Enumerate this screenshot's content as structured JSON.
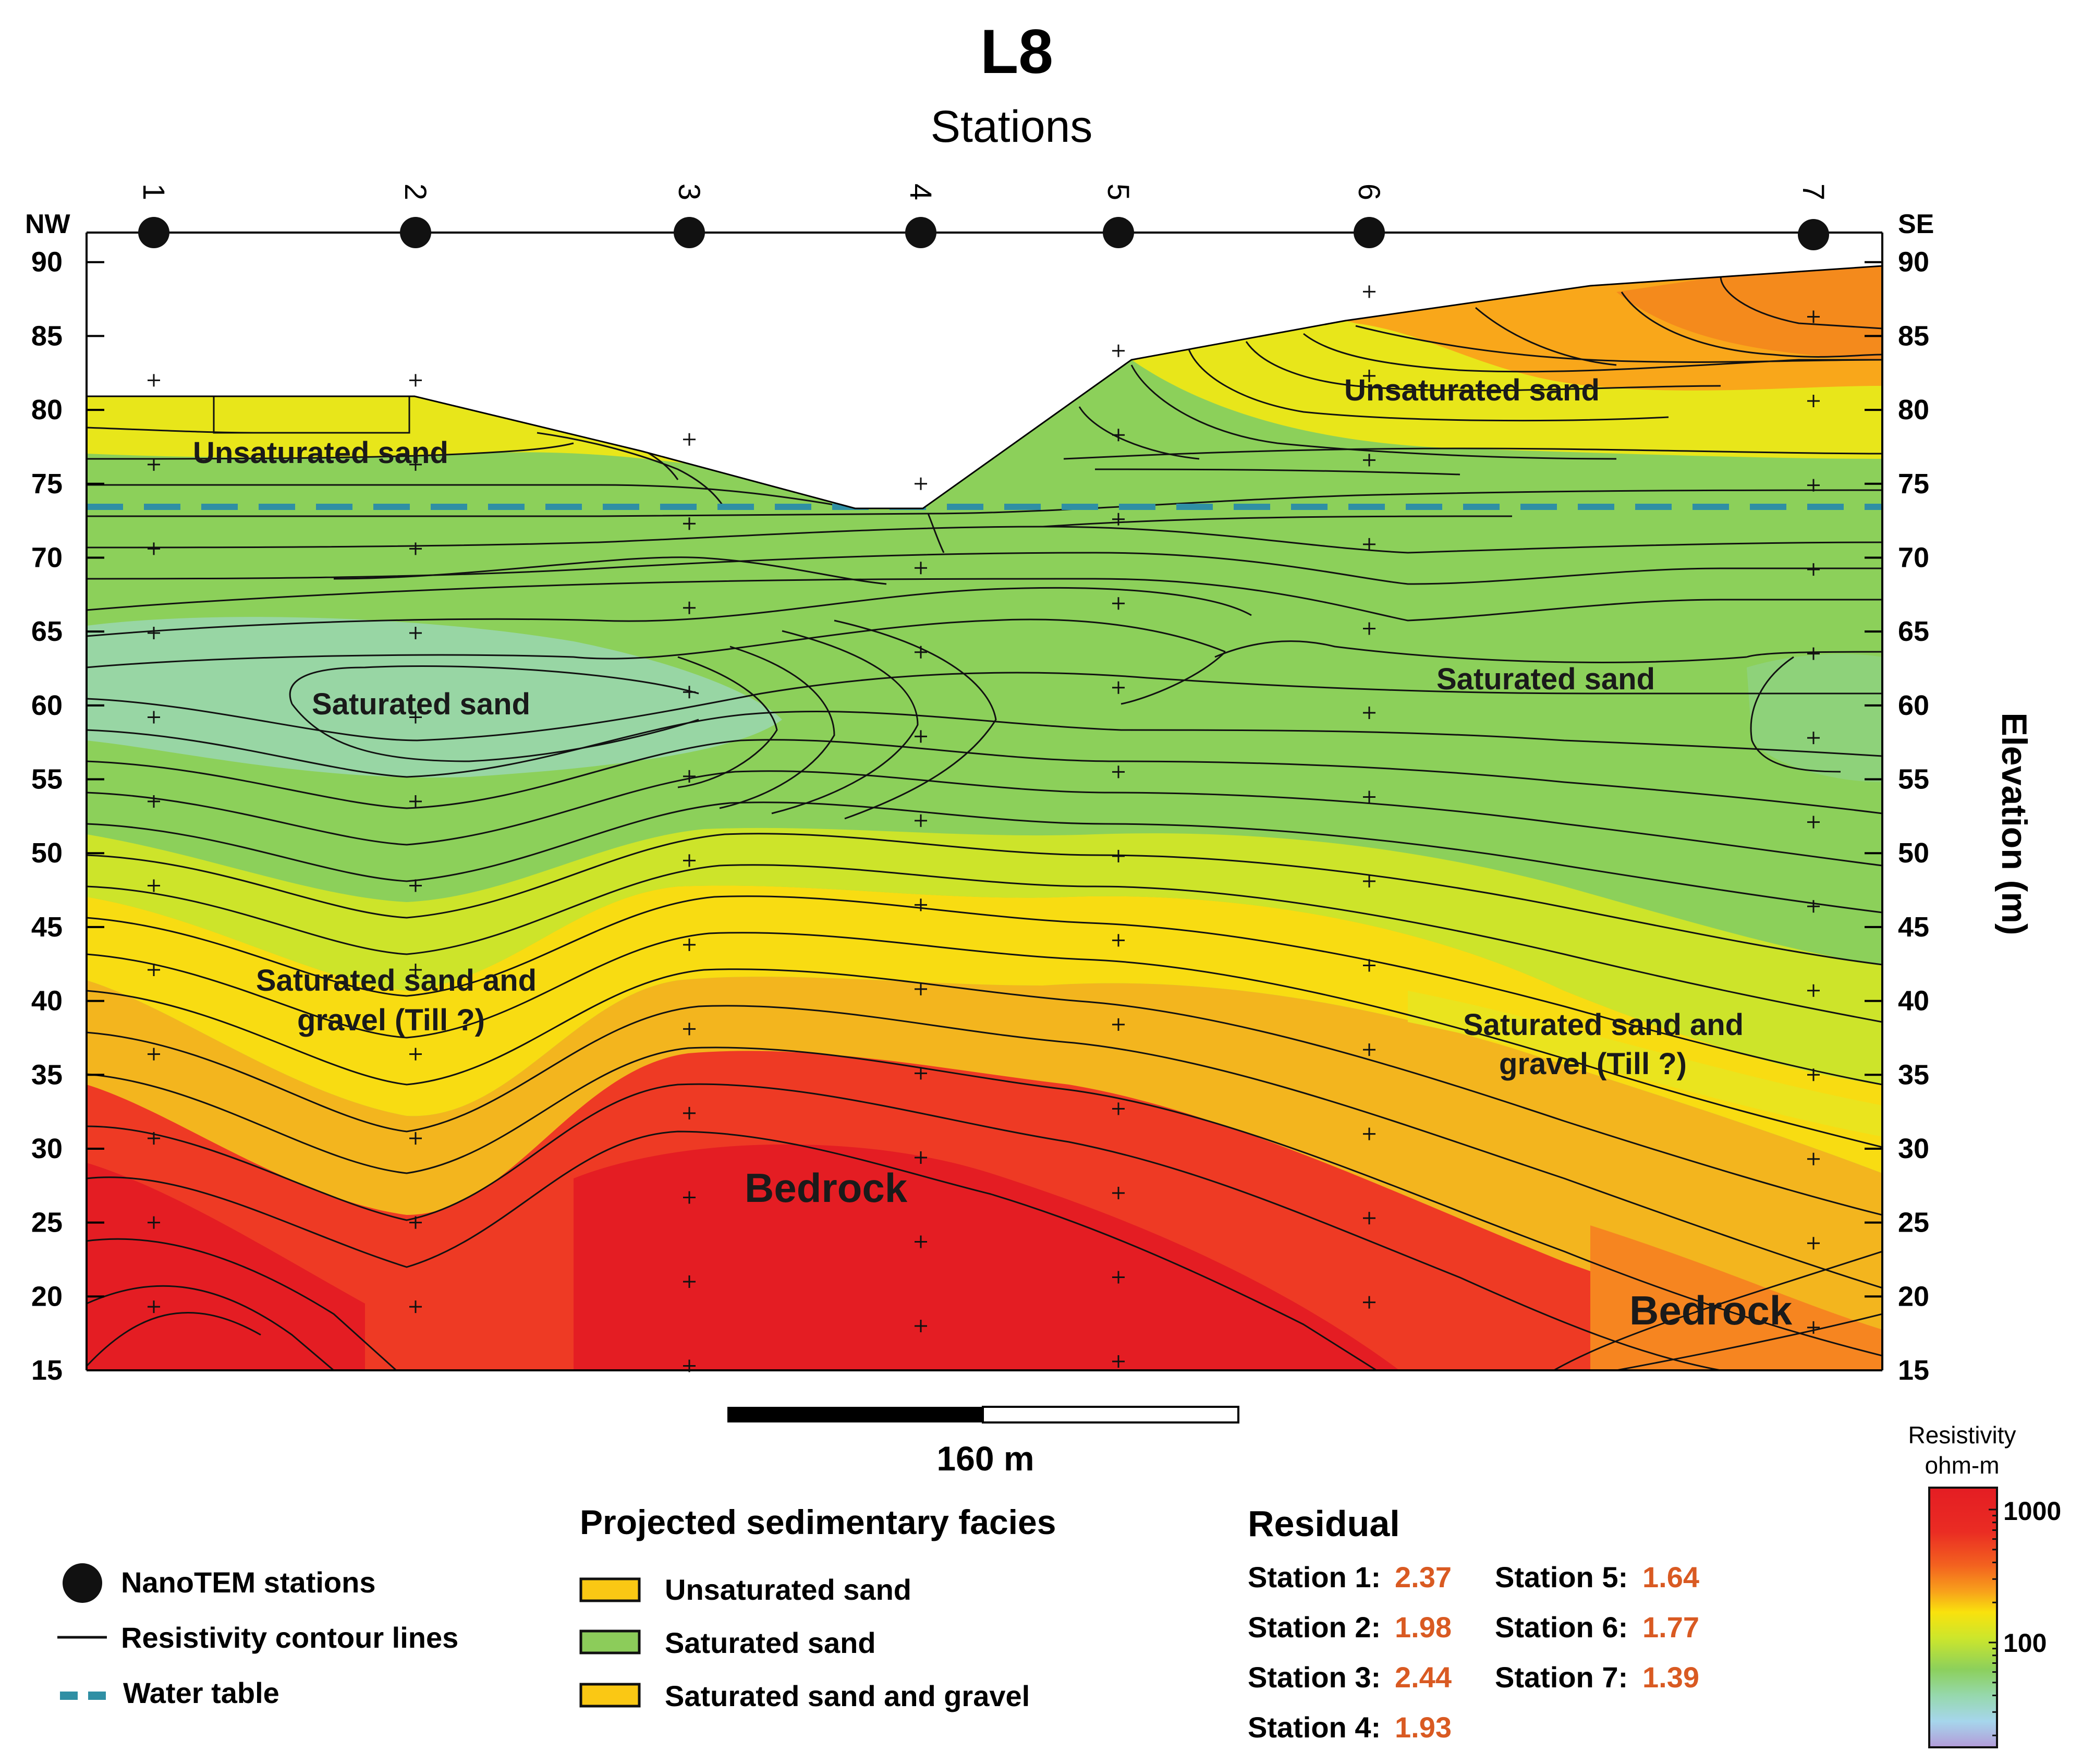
{
  "title": "L8",
  "subtitle": "Stations",
  "direction": {
    "left": "NW",
    "right": "SE"
  },
  "y_axis": {
    "label": "Elevation (m)",
    "min": 15,
    "max": 95,
    "ticks": [
      15,
      20,
      25,
      30,
      35,
      40,
      45,
      50,
      55,
      60,
      65,
      70,
      75,
      80,
      85,
      90
    ]
  },
  "stations": [
    {
      "label": "1",
      "surface_m": 83
    },
    {
      "label": "2",
      "surface_m": 83
    },
    {
      "label": "3",
      "surface_m": 79
    },
    {
      "label": "4",
      "surface_m": 76
    },
    {
      "label": "5",
      "surface_m": 85
    },
    {
      "label": "6",
      "surface_m": 89
    },
    {
      "label": "7",
      "surface_m": 93
    }
  ],
  "water_table_m": 76,
  "facies_labels": [
    {
      "text": "Unsaturated sand",
      "size": "m"
    },
    {
      "text": "Unsaturated sand",
      "size": "m"
    },
    {
      "text": "Saturated sand",
      "size": "m"
    },
    {
      "text": "Saturated sand",
      "size": "m"
    },
    {
      "text": "Saturated sand and",
      "size": "m"
    },
    {
      "text": "gravel (Till ?)",
      "size": "m"
    },
    {
      "text": "Saturated sand and",
      "size": "m"
    },
    {
      "text": "gravel (Till ?)",
      "size": "m"
    },
    {
      "text": "Bedrock",
      "size": "l"
    },
    {
      "text": "Bedrock",
      "size": "l"
    }
  ],
  "scale_bar": {
    "label": "160 m"
  },
  "legend": {
    "stations": "NanoTEM stations",
    "contours": "Resistivity contour lines",
    "water_table": "Water table"
  },
  "facies_legend": {
    "title": "Projected sedimentary facies",
    "items": [
      {
        "label": "Unsaturated sand",
        "color": "#fac814"
      },
      {
        "label": "Saturated sand",
        "color": "#8ccc5a"
      },
      {
        "label": "Saturated sand and gravel",
        "color": "#fac814"
      }
    ]
  },
  "residual": {
    "title": "Residual",
    "items": [
      {
        "label": "Station 1:",
        "value": "2.37"
      },
      {
        "label": "Station 2:",
        "value": "1.98"
      },
      {
        "label": "Station 3:",
        "value": "2.44"
      },
      {
        "label": "Station 4:",
        "value": "1.93"
      },
      {
        "label": "Station 5:",
        "value": "1.64"
      },
      {
        "label": "Station 6:",
        "value": "1.77"
      },
      {
        "label": "Station 7:",
        "value": "1.39"
      }
    ],
    "value_color": "#d95a22"
  },
  "colorbar": {
    "title": "Resistivity",
    "units": "ohm-m",
    "tick_labels": [
      "1000",
      "100"
    ],
    "colors": [
      "#e8202a",
      "#f5641e",
      "#f9a01a",
      "#f8e10e",
      "#d4e62a",
      "#95cf4a",
      "#86ce6a",
      "#9ad9b0",
      "#a9d6ec",
      "#b39dd6"
    ]
  }
}
